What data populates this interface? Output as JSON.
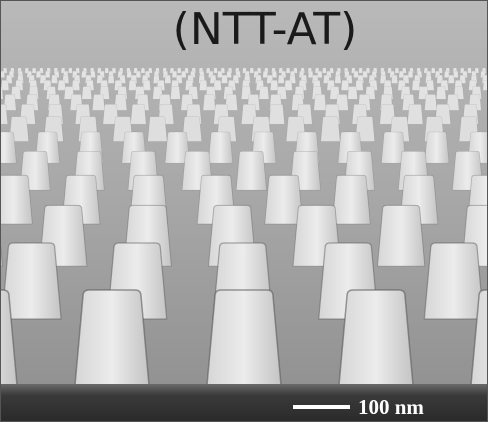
{
  "image": {
    "caption": "(NTT-AT)",
    "scale_bar": "100 nm"
  }
}
